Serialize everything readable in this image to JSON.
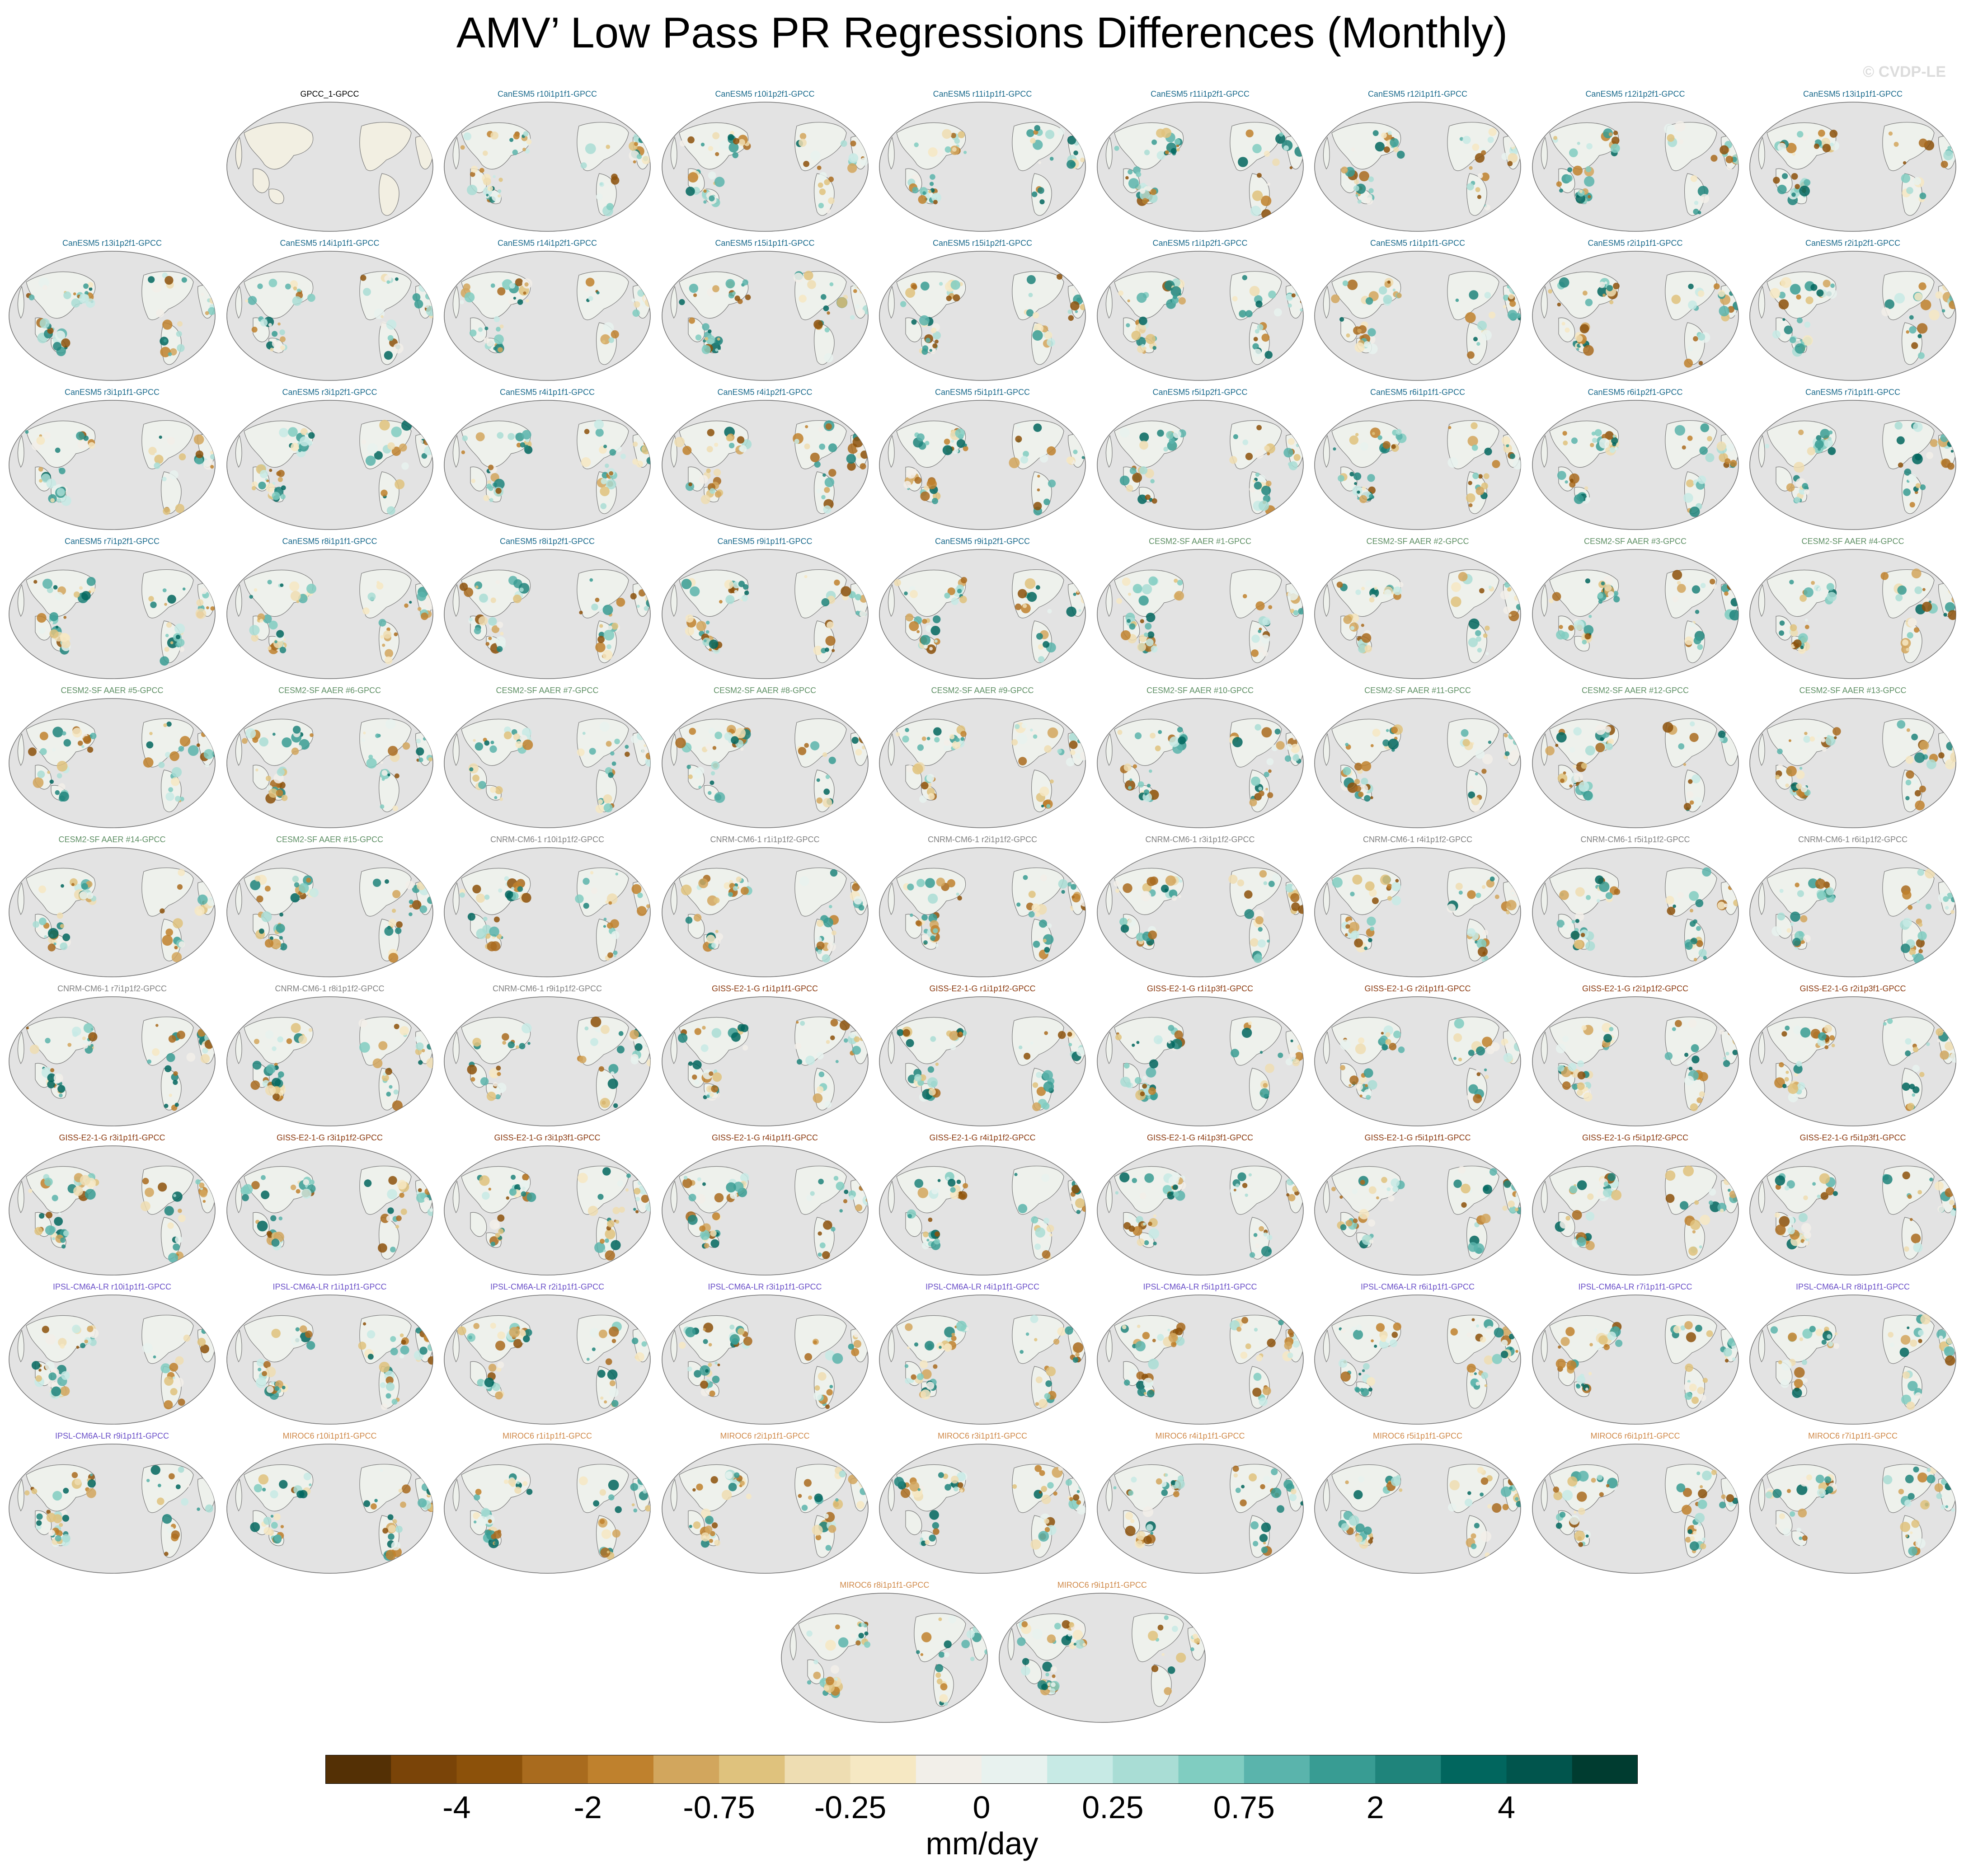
{
  "title": "AMV’ Low Pass PR Regressions Differences (Monthly)",
  "watermark": "© CVDP-LE",
  "units": "mm/day",
  "colorbar": {
    "labels": [
      "-4",
      "-2",
      "-0.75",
      "-0.25",
      "0",
      "0.25",
      "0.75",
      "2",
      "4"
    ],
    "colors": [
      "#543005",
      "#7a4408",
      "#8c510a",
      "#a96b1e",
      "#bf812d",
      "#d2a65d",
      "#dfc27d",
      "#eeddb2",
      "#f6e8c3",
      "#f2efe9",
      "#e8f2ef",
      "#c7eae5",
      "#a9ddd5",
      "#80cdc1",
      "#5ab4ac",
      "#389c93",
      "#1f847b",
      "#01665e",
      "#01554d",
      "#003c30"
    ]
  },
  "chart_data": {
    "type": "map-grid",
    "title": "AMV’ Low Pass PR Regressions Differences (Monthly)",
    "units": "mm/day",
    "colorbar_ticks": [
      "-4",
      "-2",
      "-0.75",
      "-0.25",
      "0",
      "0.25",
      "0.75",
      "2",
      "4"
    ],
    "group_colors": {
      "obs": "#000000",
      "CanESM5": "#1a6a8c",
      "CESM2-SF AAER": "#5e8f64",
      "CNRM-CM6-1": "#808080",
      "GISS-E2-1-G": "#8b3a10",
      "IPSL-CM6A-LR": "#6a4fc8",
      "MIROC6": "#d08a4a"
    },
    "panels": [
      {
        "label": "GPCC_1-GPCC",
        "group": "obs"
      },
      {
        "label": "CanESM5 r10i1p1f1-GPCC",
        "group": "CanESM5"
      },
      {
        "label": "CanESM5 r10i1p2f1-GPCC",
        "group": "CanESM5"
      },
      {
        "label": "CanESM5 r11i1p1f1-GPCC",
        "group": "CanESM5"
      },
      {
        "label": "CanESM5 r11i1p2f1-GPCC",
        "group": "CanESM5"
      },
      {
        "label": "CanESM5 r12i1p1f1-GPCC",
        "group": "CanESM5"
      },
      {
        "label": "CanESM5 r12i1p2f1-GPCC",
        "group": "CanESM5"
      },
      {
        "label": "CanESM5 r13i1p1f1-GPCC",
        "group": "CanESM5"
      },
      {
        "label": "CanESM5 r13i1p2f1-GPCC",
        "group": "CanESM5"
      },
      {
        "label": "CanESM5 r14i1p1f1-GPCC",
        "group": "CanESM5"
      },
      {
        "label": "CanESM5 r14i1p2f1-GPCC",
        "group": "CanESM5"
      },
      {
        "label": "CanESM5 r15i1p1f1-GPCC",
        "group": "CanESM5"
      },
      {
        "label": "CanESM5 r15i1p2f1-GPCC",
        "group": "CanESM5"
      },
      {
        "label": "CanESM5 r1i1p2f1-GPCC",
        "group": "CanESM5"
      },
      {
        "label": "CanESM5 r1i1p1f1-GPCC",
        "group": "CanESM5"
      },
      {
        "label": "CanESM5 r2i1p1f1-GPCC",
        "group": "CanESM5"
      },
      {
        "label": "CanESM5 r2i1p2f1-GPCC",
        "group": "CanESM5"
      },
      {
        "label": "CanESM5 r3i1p1f1-GPCC",
        "group": "CanESM5"
      },
      {
        "label": "CanESM5 r3i1p2f1-GPCC",
        "group": "CanESM5"
      },
      {
        "label": "CanESM5 r4i1p1f1-GPCC",
        "group": "CanESM5"
      },
      {
        "label": "CanESM5 r4i1p2f1-GPCC",
        "group": "CanESM5"
      },
      {
        "label": "CanESM5 r5i1p1f1-GPCC",
        "group": "CanESM5"
      },
      {
        "label": "CanESM5 r5i1p2f1-GPCC",
        "group": "CanESM5"
      },
      {
        "label": "CanESM5 r6i1p1f1-GPCC",
        "group": "CanESM5"
      },
      {
        "label": "CanESM5 r6i1p2f1-GPCC",
        "group": "CanESM5"
      },
      {
        "label": "CanESM5 r7i1p1f1-GPCC",
        "group": "CanESM5"
      },
      {
        "label": "CanESM5 r7i1p2f1-GPCC",
        "group": "CanESM5"
      },
      {
        "label": "CanESM5 r8i1p1f1-GPCC",
        "group": "CanESM5"
      },
      {
        "label": "CanESM5 r8i1p2f1-GPCC",
        "group": "CanESM5"
      },
      {
        "label": "CanESM5 r9i1p1f1-GPCC",
        "group": "CanESM5"
      },
      {
        "label": "CanESM5 r9i1p2f1-GPCC",
        "group": "CanESM5"
      },
      {
        "label": "CESM2-SF AAER #1-GPCC",
        "group": "CESM2-SF AAER"
      },
      {
        "label": "CESM2-SF AAER #2-GPCC",
        "group": "CESM2-SF AAER"
      },
      {
        "label": "CESM2-SF AAER #3-GPCC",
        "group": "CESM2-SF AAER"
      },
      {
        "label": "CESM2-SF AAER #4-GPCC",
        "group": "CESM2-SF AAER"
      },
      {
        "label": "CESM2-SF AAER #5-GPCC",
        "group": "CESM2-SF AAER"
      },
      {
        "label": "CESM2-SF AAER #6-GPCC",
        "group": "CESM2-SF AAER"
      },
      {
        "label": "CESM2-SF AAER #7-GPCC",
        "group": "CESM2-SF AAER"
      },
      {
        "label": "CESM2-SF AAER #8-GPCC",
        "group": "CESM2-SF AAER"
      },
      {
        "label": "CESM2-SF AAER #9-GPCC",
        "group": "CESM2-SF AAER"
      },
      {
        "label": "CESM2-SF AAER #10-GPCC",
        "group": "CESM2-SF AAER"
      },
      {
        "label": "CESM2-SF AAER #11-GPCC",
        "group": "CESM2-SF AAER"
      },
      {
        "label": "CESM2-SF AAER #12-GPCC",
        "group": "CESM2-SF AAER"
      },
      {
        "label": "CESM2-SF AAER #13-GPCC",
        "group": "CESM2-SF AAER"
      },
      {
        "label": "CESM2-SF AAER #14-GPCC",
        "group": "CESM2-SF AAER"
      },
      {
        "label": "CESM2-SF AAER #15-GPCC",
        "group": "CESM2-SF AAER"
      },
      {
        "label": "CNRM-CM6-1 r10i1p1f2-GPCC",
        "group": "CNRM-CM6-1"
      },
      {
        "label": "CNRM-CM6-1 r1i1p1f2-GPCC",
        "group": "CNRM-CM6-1"
      },
      {
        "label": "CNRM-CM6-1 r2i1p1f2-GPCC",
        "group": "CNRM-CM6-1"
      },
      {
        "label": "CNRM-CM6-1 r3i1p1f2-GPCC",
        "group": "CNRM-CM6-1"
      },
      {
        "label": "CNRM-CM6-1 r4i1p1f2-GPCC",
        "group": "CNRM-CM6-1"
      },
      {
        "label": "CNRM-CM6-1 r5i1p1f2-GPCC",
        "group": "CNRM-CM6-1"
      },
      {
        "label": "CNRM-CM6-1 r6i1p1f2-GPCC",
        "group": "CNRM-CM6-1"
      },
      {
        "label": "CNRM-CM6-1 r7i1p1f2-GPCC",
        "group": "CNRM-CM6-1"
      },
      {
        "label": "CNRM-CM6-1 r8i1p1f2-GPCC",
        "group": "CNRM-CM6-1"
      },
      {
        "label": "CNRM-CM6-1 r9i1p1f2-GPCC",
        "group": "CNRM-CM6-1"
      },
      {
        "label": "GISS-E2-1-G r1i1p1f1-GPCC",
        "group": "GISS-E2-1-G"
      },
      {
        "label": "GISS-E2-1-G r1i1p1f2-GPCC",
        "group": "GISS-E2-1-G"
      },
      {
        "label": "GISS-E2-1-G r1i1p3f1-GPCC",
        "group": "GISS-E2-1-G"
      },
      {
        "label": "GISS-E2-1-G r2i1p1f1-GPCC",
        "group": "GISS-E2-1-G"
      },
      {
        "label": "GISS-E2-1-G r2i1p1f2-GPCC",
        "group": "GISS-E2-1-G"
      },
      {
        "label": "GISS-E2-1-G r2i1p3f1-GPCC",
        "group": "GISS-E2-1-G"
      },
      {
        "label": "GISS-E2-1-G r3i1p1f1-GPCC",
        "group": "GISS-E2-1-G"
      },
      {
        "label": "GISS-E2-1-G r3i1p1f2-GPCC",
        "group": "GISS-E2-1-G"
      },
      {
        "label": "GISS-E2-1-G r3i1p3f1-GPCC",
        "group": "GISS-E2-1-G"
      },
      {
        "label": "GISS-E2-1-G r4i1p1f1-GPCC",
        "group": "GISS-E2-1-G"
      },
      {
        "label": "GISS-E2-1-G r4i1p1f2-GPCC",
        "group": "GISS-E2-1-G"
      },
      {
        "label": "GISS-E2-1-G r4i1p3f1-GPCC",
        "group": "GISS-E2-1-G"
      },
      {
        "label": "GISS-E2-1-G r5i1p1f1-GPCC",
        "group": "GISS-E2-1-G"
      },
      {
        "label": "GISS-E2-1-G r5i1p1f2-GPCC",
        "group": "GISS-E2-1-G"
      },
      {
        "label": "GISS-E2-1-G r5i1p3f1-GPCC",
        "group": "GISS-E2-1-G"
      },
      {
        "label": "IPSL-CM6A-LR r10i1p1f1-GPCC",
        "group": "IPSL-CM6A-LR"
      },
      {
        "label": "IPSL-CM6A-LR r1i1p1f1-GPCC",
        "group": "IPSL-CM6A-LR"
      },
      {
        "label": "IPSL-CM6A-LR r2i1p1f1-GPCC",
        "group": "IPSL-CM6A-LR"
      },
      {
        "label": "IPSL-CM6A-LR r3i1p1f1-GPCC",
        "group": "IPSL-CM6A-LR"
      },
      {
        "label": "IPSL-CM6A-LR r4i1p1f1-GPCC",
        "group": "IPSL-CM6A-LR"
      },
      {
        "label": "IPSL-CM6A-LR r5i1p1f1-GPCC",
        "group": "IPSL-CM6A-LR"
      },
      {
        "label": "IPSL-CM6A-LR r6i1p1f1-GPCC",
        "group": "IPSL-CM6A-LR"
      },
      {
        "label": "IPSL-CM6A-LR r7i1p1f1-GPCC",
        "group": "IPSL-CM6A-LR"
      },
      {
        "label": "IPSL-CM6A-LR r8i1p1f1-GPCC",
        "group": "IPSL-CM6A-LR"
      },
      {
        "label": "IPSL-CM6A-LR r9i1p1f1-GPCC",
        "group": "IPSL-CM6A-LR"
      },
      {
        "label": "MIROC6 r10i1p1f1-GPCC",
        "group": "MIROC6"
      },
      {
        "label": "MIROC6 r1i1p1f1-GPCC",
        "group": "MIROC6"
      },
      {
        "label": "MIROC6 r2i1p1f1-GPCC",
        "group": "MIROC6"
      },
      {
        "label": "MIROC6 r3i1p1f1-GPCC",
        "group": "MIROC6"
      },
      {
        "label": "MIROC6 r4i1p1f1-GPCC",
        "group": "MIROC6"
      },
      {
        "label": "MIROC6 r5i1p1f1-GPCC",
        "group": "MIROC6"
      },
      {
        "label": "MIROC6 r6i1p1f1-GPCC",
        "group": "MIROC6"
      },
      {
        "label": "MIROC6 r7i1p1f1-GPCC",
        "group": "MIROC6"
      },
      {
        "label": "MIROC6 r8i1p1f1-GPCC",
        "group": "MIROC6"
      },
      {
        "label": "MIROC6 r9i1p1f1-GPCC",
        "group": "MIROC6"
      }
    ]
  }
}
